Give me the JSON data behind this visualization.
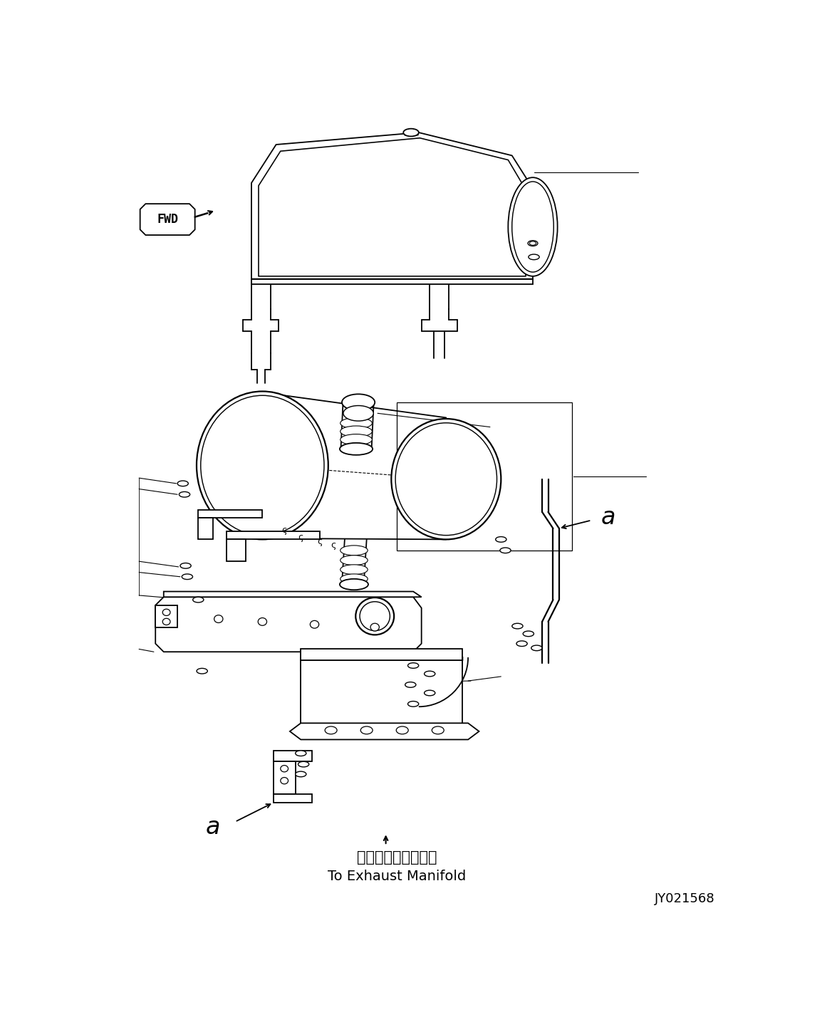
{
  "bg_color": "#ffffff",
  "line_color": "#000000",
  "japanese_text": "排気マニホールドへ",
  "english_text": "To Exhaust Manifold",
  "label_a": "a",
  "code": "JY021568",
  "fwd_label": "FWD"
}
